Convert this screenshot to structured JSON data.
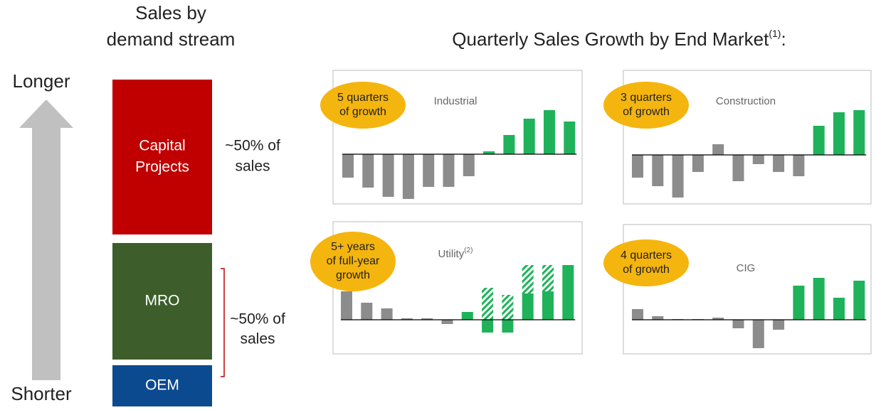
{
  "left_panel": {
    "title": [
      "Sales by",
      "demand stream"
    ],
    "arrow_top": "Longer",
    "arrow_bottom": "Shorter",
    "blocks": [
      {
        "label": [
          "Capital",
          "Projects"
        ],
        "color": "#c00000"
      },
      {
        "label": [
          "MRO"
        ],
        "color": "#3d5e2b"
      },
      {
        "label": [
          "OEM"
        ],
        "color": "#0b4a8f"
      }
    ],
    "shares": [
      [
        "~50% of",
        "sales"
      ],
      [
        "~50% of",
        "sales"
      ]
    ]
  },
  "header": {
    "title": "Quarterly Sales Growth by End Market",
    "footnote": "(1)",
    "suffix": ":"
  },
  "chart_data": [
    {
      "type": "bar",
      "title": "Industrial",
      "badge": [
        "5 quarters",
        "of growth"
      ],
      "values": [
        -33,
        -47,
        -60,
        -63,
        -46,
        -46,
        -31,
        4,
        27,
        50,
        62,
        46
      ],
      "colors": [
        "#8c8c8c",
        "#8c8c8c",
        "#8c8c8c",
        "#8c8c8c",
        "#8c8c8c",
        "#8c8c8c",
        "#8c8c8c",
        "#1fb25a",
        "#1fb25a",
        "#1fb25a",
        "#1fb25a",
        "#1fb25a"
      ],
      "ylim": [
        -70,
        70
      ]
    },
    {
      "type": "bar",
      "title": "Construction",
      "badge": [
        "3 quarters",
        "of growth"
      ],
      "values": [
        -32,
        -44,
        -60,
        -24,
        15,
        -37,
        -13,
        -24,
        -30,
        41,
        60,
        63
      ],
      "colors": [
        "#8c8c8c",
        "#8c8c8c",
        "#8c8c8c",
        "#8c8c8c",
        "#8c8c8c",
        "#8c8c8c",
        "#8c8c8c",
        "#8c8c8c",
        "#8c8c8c",
        "#1fb25a",
        "#1fb25a",
        "#1fb25a"
      ],
      "ylim": [
        -70,
        70
      ]
    },
    {
      "type": "bar",
      "title": "Utility",
      "title_footnote": "(2)",
      "badge": [
        "5+ years",
        "of full-year",
        "growth"
      ],
      "values": [
        40,
        24,
        16,
        2,
        2,
        -6,
        11,
        -18,
        -18,
        37,
        40,
        77
      ],
      "hatched_values": [
        null,
        null,
        null,
        null,
        null,
        null,
        null,
        45,
        35,
        40,
        37,
        null
      ],
      "colors": [
        "#8c8c8c",
        "#8c8c8c",
        "#8c8c8c",
        "#8c8c8c",
        "#8c8c8c",
        "#8c8c8c",
        "#1fb25a",
        "#1fb25a",
        "#1fb25a",
        "#1fb25a",
        "#1fb25a",
        "#1fb25a"
      ],
      "ylim": [
        -50,
        80
      ]
    },
    {
      "type": "bar",
      "title": "CIG",
      "badge": [
        "4 quarters",
        "of growth"
      ],
      "values": [
        15,
        5,
        1,
        1,
        3,
        -12,
        -40,
        -14,
        48,
        59,
        31,
        55
      ],
      "colors": [
        "#8c8c8c",
        "#8c8c8c",
        "#8c8c8c",
        "#8c8c8c",
        "#8c8c8c",
        "#8c8c8c",
        "#8c8c8c",
        "#8c8c8c",
        "#1fb25a",
        "#1fb25a",
        "#1fb25a",
        "#1fb25a"
      ],
      "ylim": [
        -50,
        80
      ]
    }
  ]
}
